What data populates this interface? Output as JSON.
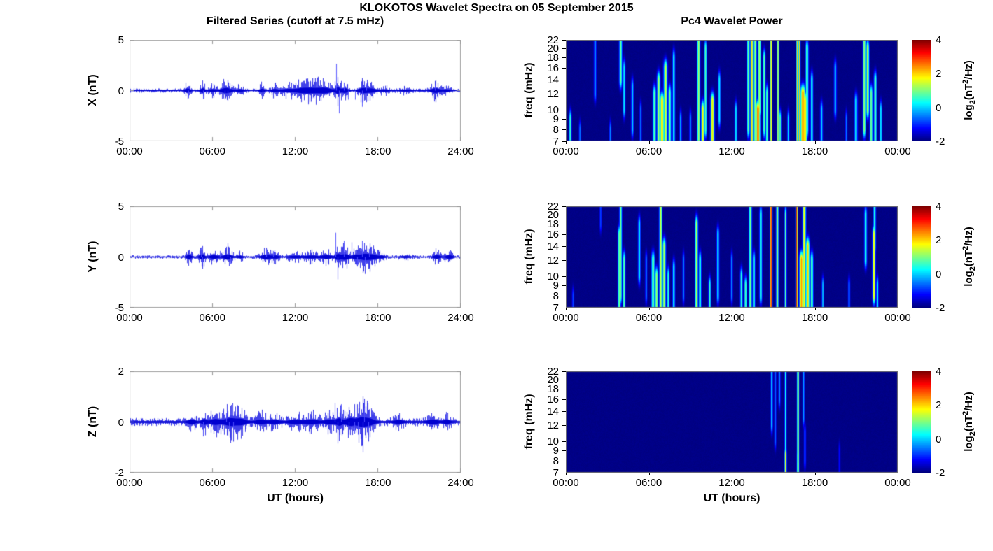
{
  "figure": {
    "title": "KLOKOTOS Wavelet Spectra on 05 September 2015",
    "left_column_title": "Filtered Series (cutoff at 7.5 mHz)",
    "right_column_title": "Pc4 Wavelet Power",
    "x_axis_label": "UT (hours)",
    "trace_color": "#0000dd",
    "spike_color": "#5050ff",
    "axis_box_color": "#aaaaaa",
    "colorbar": {
      "label_log": "log",
      "label_sub": "2",
      "label_mid": "(nT",
      "label_sup": "2",
      "label_end": "/Hz)",
      "ticks": [
        4,
        2,
        0,
        -2
      ],
      "range": [
        -2,
        4
      ],
      "colormap": "jet"
    }
  },
  "chart_data": [
    {
      "type": "line",
      "component": "X",
      "title": "Filtered Series (cutoff at 7.5 mHz)",
      "ylabel": "X (nT)",
      "xlabel": "",
      "ylim": [
        -5,
        5
      ],
      "yticks": [
        5,
        0,
        -5
      ],
      "x_hours": [
        0,
        24
      ],
      "xticks": [
        "00:00",
        "06:00",
        "12:00",
        "18:00",
        "24:00"
      ],
      "noise_base": 0.07,
      "bursts": [
        [
          4.2,
          0.15,
          0.3
        ],
        [
          5.3,
          0.12,
          0.35
        ],
        [
          6.0,
          0.2,
          0.18
        ],
        [
          7.0,
          0.3,
          0.4
        ],
        [
          8.0,
          0.2,
          0.18
        ],
        [
          9.6,
          0.15,
          0.25
        ],
        [
          10.5,
          0.2,
          0.2
        ],
        [
          11.5,
          0.4,
          0.22
        ],
        [
          12.5,
          0.4,
          0.3
        ],
        [
          13.3,
          0.5,
          0.35
        ],
        [
          14.2,
          0.4,
          0.35
        ],
        [
          15.1,
          0.15,
          0.45
        ],
        [
          15.6,
          0.2,
          0.35
        ],
        [
          16.9,
          0.25,
          0.35
        ],
        [
          17.5,
          0.3,
          0.3
        ],
        [
          18.5,
          0.3,
          0.12
        ],
        [
          20.0,
          0.3,
          0.1
        ],
        [
          22.2,
          0.25,
          0.35
        ],
        [
          23.0,
          0.2,
          0.15
        ]
      ],
      "spikes": [
        [
          4.25,
          -0.75
        ],
        [
          5.32,
          -0.85
        ],
        [
          6.9,
          -0.9
        ],
        [
          7.1,
          -1.05
        ],
        [
          7.25,
          0.7
        ],
        [
          9.65,
          -0.6
        ],
        [
          14.9,
          0.9
        ],
        [
          15.02,
          2.65
        ],
        [
          15.18,
          -2.25
        ],
        [
          15.55,
          0.8
        ],
        [
          15.85,
          -0.9
        ],
        [
          16.35,
          -0.9
        ],
        [
          16.88,
          -1.6
        ],
        [
          17.2,
          0.7
        ],
        [
          22.15,
          0.6
        ]
      ]
    },
    {
      "type": "line",
      "component": "Y",
      "title": "",
      "ylabel": "Y (nT)",
      "xlabel": "",
      "ylim": [
        -5,
        5
      ],
      "yticks": [
        5,
        0,
        -5
      ],
      "x_hours": [
        0,
        24
      ],
      "xticks": [
        "00:00",
        "06:00",
        "12:00",
        "18:00",
        "24:00"
      ],
      "noise_base": 0.06,
      "bursts": [
        [
          4.3,
          0.15,
          0.3
        ],
        [
          5.25,
          0.15,
          0.4
        ],
        [
          6.1,
          0.25,
          0.25
        ],
        [
          7.1,
          0.25,
          0.35
        ],
        [
          8.0,
          0.2,
          0.15
        ],
        [
          9.9,
          0.3,
          0.3
        ],
        [
          10.6,
          0.2,
          0.2
        ],
        [
          12.0,
          0.4,
          0.15
        ],
        [
          13.2,
          0.4,
          0.2
        ],
        [
          14.3,
          0.3,
          0.25
        ],
        [
          15.1,
          0.15,
          0.4
        ],
        [
          15.6,
          0.25,
          0.45
        ],
        [
          16.4,
          0.2,
          0.3
        ],
        [
          17.0,
          0.3,
          0.45
        ],
        [
          17.6,
          0.3,
          0.35
        ],
        [
          18.3,
          0.2,
          0.15
        ],
        [
          20.0,
          0.3,
          0.1
        ],
        [
          22.3,
          0.2,
          0.25
        ],
        [
          23.2,
          0.2,
          0.25
        ]
      ],
      "spikes": [
        [
          5.2,
          0.95
        ],
        [
          5.3,
          -0.6
        ],
        [
          6.55,
          0.6
        ],
        [
          7.1,
          1.35
        ],
        [
          7.3,
          -0.7
        ],
        [
          9.9,
          0.7
        ],
        [
          10.4,
          0.6
        ],
        [
          14.95,
          2.4
        ],
        [
          15.12,
          -2.2
        ],
        [
          15.55,
          1.6
        ],
        [
          16.1,
          1.45
        ],
        [
          16.5,
          -0.8
        ],
        [
          16.9,
          1.6
        ],
        [
          17.1,
          -0.9
        ],
        [
          17.4,
          0.8
        ],
        [
          22.9,
          -0.5
        ]
      ]
    },
    {
      "type": "line",
      "component": "Z",
      "title": "",
      "ylabel": "Z (nT)",
      "xlabel": "UT (hours)",
      "ylim": [
        -2,
        2
      ],
      "yticks": [
        2,
        0,
        -2
      ],
      "x_hours": [
        0,
        24
      ],
      "xticks": [
        "00:00",
        "06:00",
        "12:00",
        "18:00",
        "24:00"
      ],
      "noise_base": 0.055,
      "bursts": [
        [
          4.5,
          0.2,
          0.12
        ],
        [
          5.4,
          0.15,
          0.15
        ],
        [
          6.2,
          0.3,
          0.15
        ],
        [
          7.3,
          0.4,
          0.22
        ],
        [
          8.1,
          0.3,
          0.15
        ],
        [
          9.5,
          0.3,
          0.12
        ],
        [
          10.5,
          0.3,
          0.1
        ],
        [
          12.0,
          0.4,
          0.1
        ],
        [
          13.2,
          0.4,
          0.12
        ],
        [
          14.5,
          0.3,
          0.12
        ],
        [
          15.2,
          0.2,
          0.2
        ],
        [
          16.0,
          0.3,
          0.22
        ],
        [
          16.8,
          0.3,
          0.25
        ],
        [
          17.4,
          0.3,
          0.18
        ],
        [
          19.5,
          0.3,
          0.08
        ],
        [
          22.0,
          0.3,
          0.12
        ],
        [
          23.0,
          0.2,
          0.1
        ]
      ],
      "spikes": [
        [
          5.35,
          -0.55
        ],
        [
          5.9,
          -0.42
        ],
        [
          7.0,
          0.35
        ],
        [
          7.2,
          -0.38
        ],
        [
          7.5,
          -0.35
        ],
        [
          14.88,
          0.75
        ],
        [
          15.1,
          -0.85
        ],
        [
          15.35,
          0.7
        ],
        [
          15.9,
          -0.5
        ],
        [
          16.3,
          -0.45
        ],
        [
          16.6,
          -0.5
        ],
        [
          16.95,
          -1.2
        ],
        [
          17.05,
          0.55
        ],
        [
          17.35,
          -0.45
        ]
      ]
    },
    {
      "type": "heatmap",
      "component": "X",
      "title": "Pc4 Wavelet Power",
      "ylabel": "freq (mHz)",
      "xlabel": "",
      "yscale": "log",
      "ylim": [
        7,
        22
      ],
      "yticks": [
        22,
        20,
        18,
        16,
        14,
        12,
        10,
        9,
        8,
        7
      ],
      "x_hours": [
        0,
        24
      ],
      "xticks": [
        "00:00",
        "06:00",
        "12:00",
        "18:00",
        "00:00"
      ],
      "clim": [
        -2,
        4
      ],
      "events": [
        [
          0.3,
          7,
          9,
          0.6,
          0.06
        ],
        [
          1.0,
          7,
          8,
          -0.5,
          0.05
        ],
        [
          2.1,
          12,
          22,
          -0.3,
          0.06
        ],
        [
          3.2,
          7,
          8,
          -0.4,
          0.05
        ],
        [
          3.95,
          14,
          22,
          0.9,
          0.07
        ],
        [
          4.2,
          10,
          16,
          0.2,
          0.06
        ],
        [
          4.8,
          8,
          13,
          0.0,
          0.06
        ],
        [
          5.4,
          7,
          10,
          -0.5,
          0.05
        ],
        [
          6.4,
          7,
          12,
          0.8,
          0.08
        ],
        [
          6.7,
          7,
          14,
          1.2,
          0.08
        ],
        [
          6.95,
          7,
          11,
          2.2,
          0.1
        ],
        [
          7.2,
          7,
          16,
          1.5,
          0.09
        ],
        [
          7.5,
          7,
          12,
          1.0,
          0.07
        ],
        [
          7.8,
          7,
          18,
          0.5,
          0.06
        ],
        [
          8.3,
          7,
          9,
          0.0,
          0.05
        ],
        [
          9.0,
          7,
          9,
          -0.3,
          0.05
        ],
        [
          9.6,
          7,
          22,
          1.3,
          0.07
        ],
        [
          9.9,
          7,
          10,
          1.8,
          0.08
        ],
        [
          10.1,
          8,
          20,
          0.8,
          0.06
        ],
        [
          10.6,
          7,
          11,
          1.9,
          0.09
        ],
        [
          11.1,
          9,
          14,
          0.3,
          0.06
        ],
        [
          12.3,
          7,
          10,
          0.2,
          0.06
        ],
        [
          13.2,
          8,
          22,
          0.9,
          0.07
        ],
        [
          13.45,
          7,
          22,
          2.0,
          0.07
        ],
        [
          13.7,
          7,
          22,
          1.2,
          0.07
        ],
        [
          13.9,
          7,
          10,
          2.9,
          0.1
        ],
        [
          14.0,
          10,
          22,
          1.3,
          0.07
        ],
        [
          14.35,
          8,
          18,
          0.9,
          0.06
        ],
        [
          14.55,
          7,
          12,
          0.8,
          0.06
        ],
        [
          14.85,
          7,
          22,
          2.0,
          0.045
        ],
        [
          15.35,
          7,
          22,
          1.5,
          0.05
        ],
        [
          15.5,
          7,
          9,
          1.0,
          0.05
        ],
        [
          16.1,
          7,
          9,
          0.2,
          0.05
        ],
        [
          16.75,
          7,
          22,
          2.1,
          0.045
        ],
        [
          16.9,
          7,
          22,
          2.1,
          0.045
        ],
        [
          17.15,
          7,
          12,
          2.5,
          0.12
        ],
        [
          17.3,
          7,
          11,
          2.3,
          0.1
        ],
        [
          17.45,
          8,
          20,
          1.0,
          0.07
        ],
        [
          17.8,
          7,
          14,
          0.6,
          0.06
        ],
        [
          18.5,
          7,
          10,
          0.1,
          0.06
        ],
        [
          19.5,
          10,
          16,
          0.0,
          0.06
        ],
        [
          20.3,
          7,
          9,
          -0.5,
          0.05
        ],
        [
          21.0,
          7,
          11,
          0.5,
          0.07
        ],
        [
          21.6,
          8,
          22,
          1.2,
          0.07
        ],
        [
          21.85,
          10,
          20,
          1.6,
          0.07
        ],
        [
          22.1,
          7,
          12,
          1.0,
          0.07
        ],
        [
          22.4,
          7,
          14,
          0.8,
          0.07
        ],
        [
          22.8,
          7,
          10,
          0.2,
          0.06
        ]
      ]
    },
    {
      "type": "heatmap",
      "component": "Y",
      "title": "",
      "ylabel": "freq (mHz)",
      "xlabel": "",
      "yscale": "log",
      "ylim": [
        7,
        22
      ],
      "yticks": [
        22,
        20,
        18,
        16,
        14,
        12,
        10,
        9,
        8,
        7
      ],
      "x_hours": [
        0,
        24
      ],
      "xticks": [
        "00:00",
        "06:00",
        "12:00",
        "18:00",
        "00:00"
      ],
      "clim": [
        -2,
        4
      ],
      "events": [
        [
          0.5,
          7,
          8,
          -0.8,
          0.05
        ],
        [
          2.5,
          18,
          22,
          -0.8,
          0.05
        ],
        [
          3.85,
          7,
          16,
          1.0,
          0.07
        ],
        [
          3.95,
          8,
          22,
          1.0,
          0.06
        ],
        [
          4.2,
          7,
          12,
          0.9,
          0.06
        ],
        [
          5.3,
          10,
          18,
          0.3,
          0.06
        ],
        [
          5.8,
          8,
          12,
          -0.4,
          0.05
        ],
        [
          6.3,
          7,
          12,
          1.0,
          0.08
        ],
        [
          6.55,
          7,
          10,
          1.3,
          0.07
        ],
        [
          6.85,
          7,
          22,
          1.5,
          0.07
        ],
        [
          7.1,
          7,
          14,
          1.3,
          0.08
        ],
        [
          7.4,
          7,
          10,
          0.6,
          0.06
        ],
        [
          7.8,
          7,
          11,
          0.4,
          0.06
        ],
        [
          8.5,
          8,
          12,
          -0.4,
          0.05
        ],
        [
          9.45,
          7,
          18,
          1.4,
          0.07
        ],
        [
          9.7,
          7,
          12,
          0.8,
          0.06
        ],
        [
          10.4,
          7,
          9,
          0.6,
          0.06
        ],
        [
          11.0,
          8,
          16,
          0.3,
          0.06
        ],
        [
          12.0,
          8,
          12,
          -0.3,
          0.05
        ],
        [
          12.7,
          7,
          10,
          0.6,
          0.06
        ],
        [
          13.0,
          7,
          9,
          0.8,
          0.06
        ],
        [
          13.35,
          7,
          22,
          1.0,
          0.07
        ],
        [
          13.6,
          7,
          12,
          0.8,
          0.06
        ],
        [
          14.1,
          8,
          20,
          0.9,
          0.06
        ],
        [
          14.85,
          7,
          22,
          3.3,
          0.05
        ],
        [
          15.3,
          7,
          22,
          1.2,
          0.06
        ],
        [
          15.9,
          7,
          20,
          1.0,
          0.05
        ],
        [
          16.7,
          7,
          22,
          3.6,
          0.045
        ],
        [
          17.05,
          7,
          12,
          2.4,
          0.1
        ],
        [
          17.25,
          7,
          22,
          1.8,
          0.08
        ],
        [
          17.5,
          7,
          14,
          2.0,
          0.09
        ],
        [
          17.8,
          7,
          12,
          1.0,
          0.07
        ],
        [
          18.6,
          7,
          9,
          0.0,
          0.05
        ],
        [
          20.5,
          7,
          9,
          -0.3,
          0.05
        ],
        [
          21.7,
          12,
          20,
          0.7,
          0.06
        ],
        [
          22.3,
          8,
          16,
          1.9,
          0.07
        ],
        [
          22.35,
          14,
          22,
          0.6,
          0.06
        ],
        [
          22.55,
          7,
          9,
          0.5,
          0.05
        ]
      ]
    },
    {
      "type": "heatmap",
      "component": "Z",
      "title": "",
      "ylabel": "freq (mHz)",
      "xlabel": "UT (hours)",
      "yscale": "log",
      "ylim": [
        7,
        22
      ],
      "yticks": [
        22,
        20,
        18,
        16,
        14,
        12,
        10,
        9,
        8,
        7
      ],
      "x_hours": [
        0,
        24
      ],
      "xticks": [
        "00:00",
        "06:00",
        "12:00",
        "18:00",
        "00:00"
      ],
      "clim": [
        -2,
        4
      ],
      "events": [
        [
          14.9,
          12,
          22,
          0.2,
          0.05
        ],
        [
          15.15,
          10,
          22,
          -0.6,
          0.05
        ],
        [
          15.45,
          16,
          22,
          -0.3,
          0.05
        ],
        [
          15.9,
          8,
          22,
          0.6,
          0.045
        ],
        [
          15.9,
          7,
          8.5,
          1.8,
          0.05
        ],
        [
          16.8,
          8,
          22,
          2.4,
          0.045
        ],
        [
          16.8,
          7,
          8.5,
          2.0,
          0.05
        ],
        [
          17.2,
          13,
          22,
          -0.3,
          0.05
        ],
        [
          17.3,
          8,
          11,
          -0.6,
          0.05
        ],
        [
          19.8,
          7,
          9,
          -1.2,
          0.05
        ]
      ]
    }
  ]
}
